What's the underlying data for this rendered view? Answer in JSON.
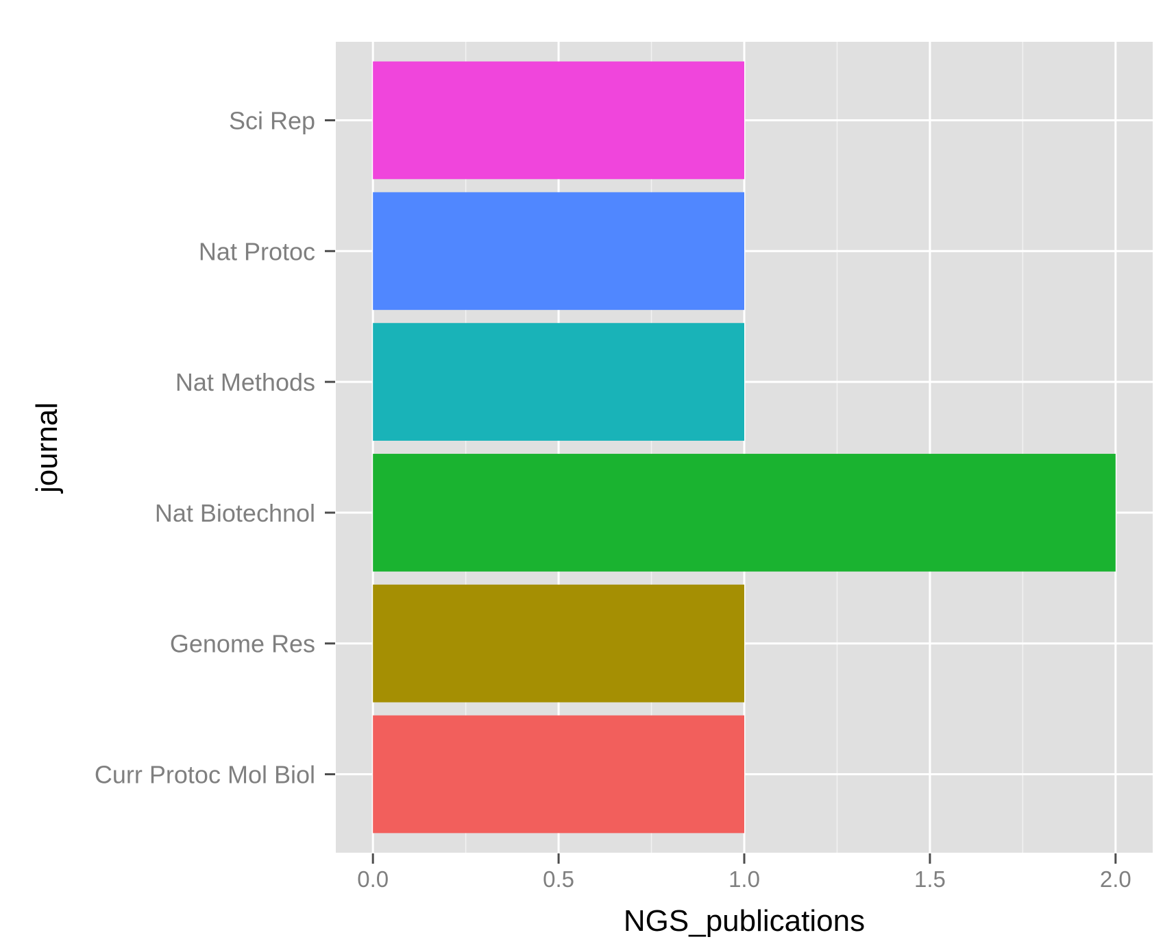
{
  "chart_data": {
    "type": "bar",
    "orientation": "horizontal",
    "categories": [
      "Curr Protoc Mol Biol",
      "Genome Res",
      "Nat Biotechnol",
      "Nat Methods",
      "Nat Protoc",
      "Sci Rep"
    ],
    "values": [
      1,
      1,
      2,
      1,
      1,
      1
    ],
    "colors": [
      "#F25F5C",
      "#A58F03",
      "#1AB330",
      "#19B3B8",
      "#5087FF",
      "#F045DC"
    ],
    "xlabel": "NGS_publications",
    "ylabel": "journal",
    "xlim": [
      -0.1,
      2.1
    ],
    "xticks": [
      0,
      0.5,
      1,
      1.5,
      2
    ],
    "xtick_labels": [
      "0.0",
      "0.5",
      "1.0",
      "1.5",
      "2.0"
    ],
    "grid": true,
    "panel_background": "#E0E0E0",
    "legend": "none"
  }
}
